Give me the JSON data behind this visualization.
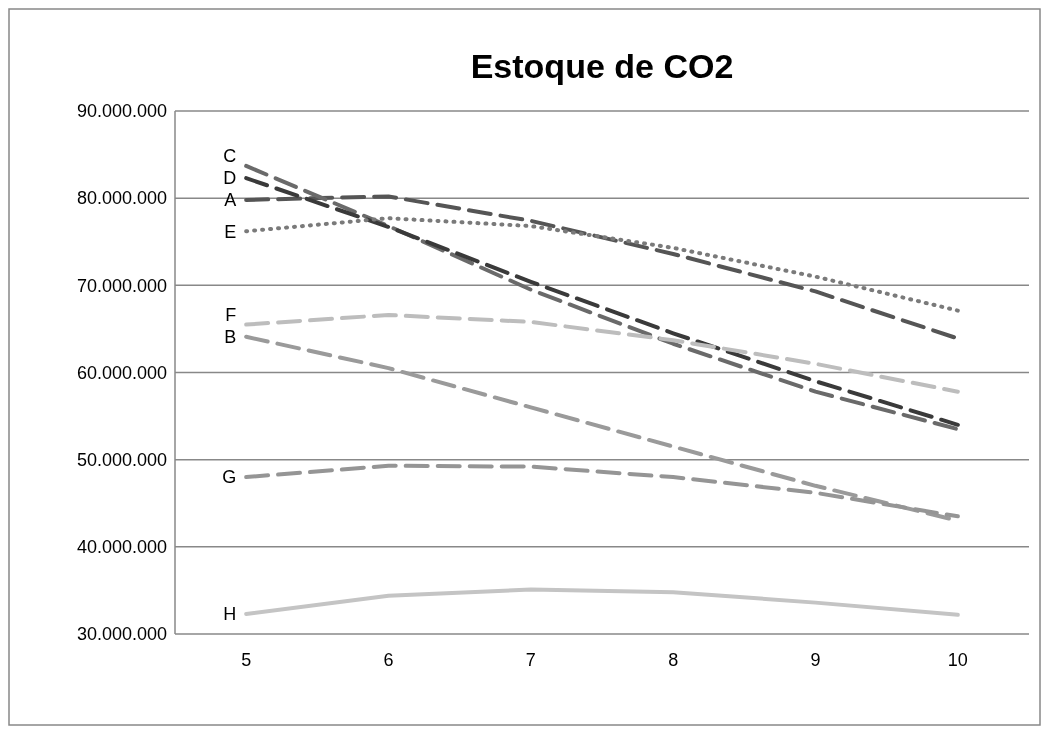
{
  "chart_data": {
    "type": "line",
    "title": "Estoque de CO2",
    "categories": [
      "5",
      "6",
      "7",
      "8",
      "9",
      "10"
    ],
    "series": [
      {
        "name": "A",
        "color": "#555555",
        "line_style": "dashed",
        "values": [
          79800000,
          80200000,
          77400000,
          73600000,
          69300000,
          63900000
        ]
      },
      {
        "name": "B",
        "color": "#9a9a9a",
        "line_style": "dashed",
        "values": [
          64100000,
          60500000,
          56000000,
          51500000,
          47000000,
          43000000
        ]
      },
      {
        "name": "C",
        "color": "#6a6a6a",
        "line_style": "dashed",
        "values": [
          83700000,
          76800000,
          69500000,
          63300000,
          57800000,
          53500000
        ]
      },
      {
        "name": "D",
        "color": "#3a3a3a",
        "line_style": "dashed",
        "values": [
          82300000,
          76700000,
          70400000,
          64500000,
          59000000,
          54000000
        ]
      },
      {
        "name": "E",
        "color": "#7a7a7a",
        "line_style": "dotted",
        "values": [
          76200000,
          77700000,
          76800000,
          74300000,
          71000000,
          67100000
        ]
      },
      {
        "name": "F",
        "color": "#bdbdbd",
        "line_style": "dashed",
        "values": [
          65500000,
          66600000,
          65800000,
          63700000,
          61000000,
          57800000
        ]
      },
      {
        "name": "G",
        "color": "#959595",
        "line_style": "dashed",
        "values": [
          48000000,
          49300000,
          49200000,
          48000000,
          46200000,
          43500000
        ]
      },
      {
        "name": "H",
        "color": "#c4c4c4",
        "line_style": "solid",
        "values": [
          32300000,
          34400000,
          35100000,
          34800000,
          33600000,
          32200000
        ]
      }
    ],
    "ylim": [
      30000000,
      90000000
    ],
    "yticks": [
      {
        "value": 30000000,
        "label": "30.000.000"
      },
      {
        "value": 40000000,
        "label": "40.000.000"
      },
      {
        "value": 50000000,
        "label": "50.000.000"
      },
      {
        "value": 60000000,
        "label": "60.000.000"
      },
      {
        "value": 70000000,
        "label": "70.000.000"
      },
      {
        "value": 80000000,
        "label": "80.000.000"
      },
      {
        "value": 90000000,
        "label": "90.000.000"
      }
    ],
    "grid": "y",
    "marker": "none"
  }
}
